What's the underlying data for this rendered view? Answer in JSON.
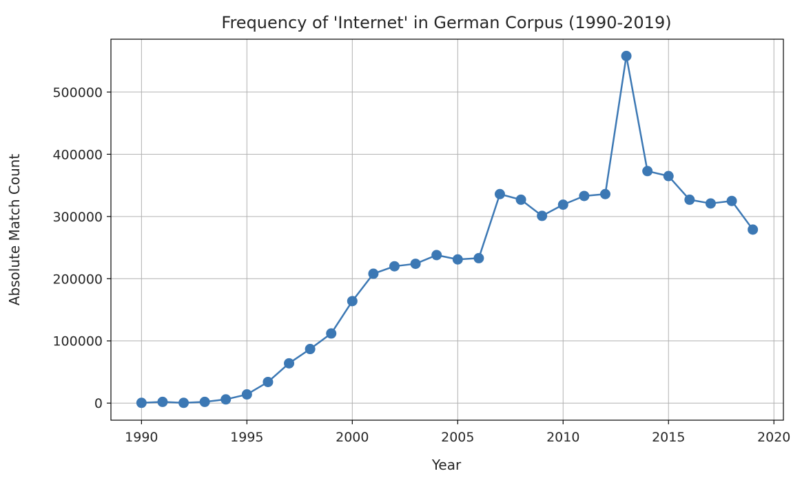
{
  "chart_data": {
    "type": "line",
    "title": "Frequency of 'Internet' in German Corpus (1990-2019)",
    "xlabel": "Year",
    "ylabel": "Absolute Match Count",
    "x": [
      1990,
      1991,
      1992,
      1993,
      1994,
      1995,
      1996,
      1997,
      1998,
      1999,
      2000,
      2001,
      2002,
      2003,
      2004,
      2005,
      2006,
      2007,
      2008,
      2009,
      2010,
      2011,
      2012,
      2013,
      2014,
      2015,
      2016,
      2017,
      2018,
      2019
    ],
    "series": [
      {
        "values": [
          500,
          2000,
          500,
          2000,
          6000,
          14000,
          34000,
          64000,
          87000,
          112000,
          164000,
          208000,
          220000,
          224000,
          238000,
          231000,
          233000,
          336000,
          327000,
          301000,
          319000,
          333000,
          336000,
          558000,
          373000,
          365000,
          327000,
          321000,
          325000,
          279000
        ],
        "color": "#3c78b4"
      }
    ],
    "xlim": [
      1988.55,
      2020.45
    ],
    "ylim": [
      -27400,
      585000
    ],
    "xticks": [
      1990,
      1995,
      2000,
      2005,
      2010,
      2015,
      2020
    ],
    "yticks": [
      0,
      100000,
      200000,
      300000,
      400000,
      500000
    ],
    "grid": true,
    "legend": "none"
  }
}
